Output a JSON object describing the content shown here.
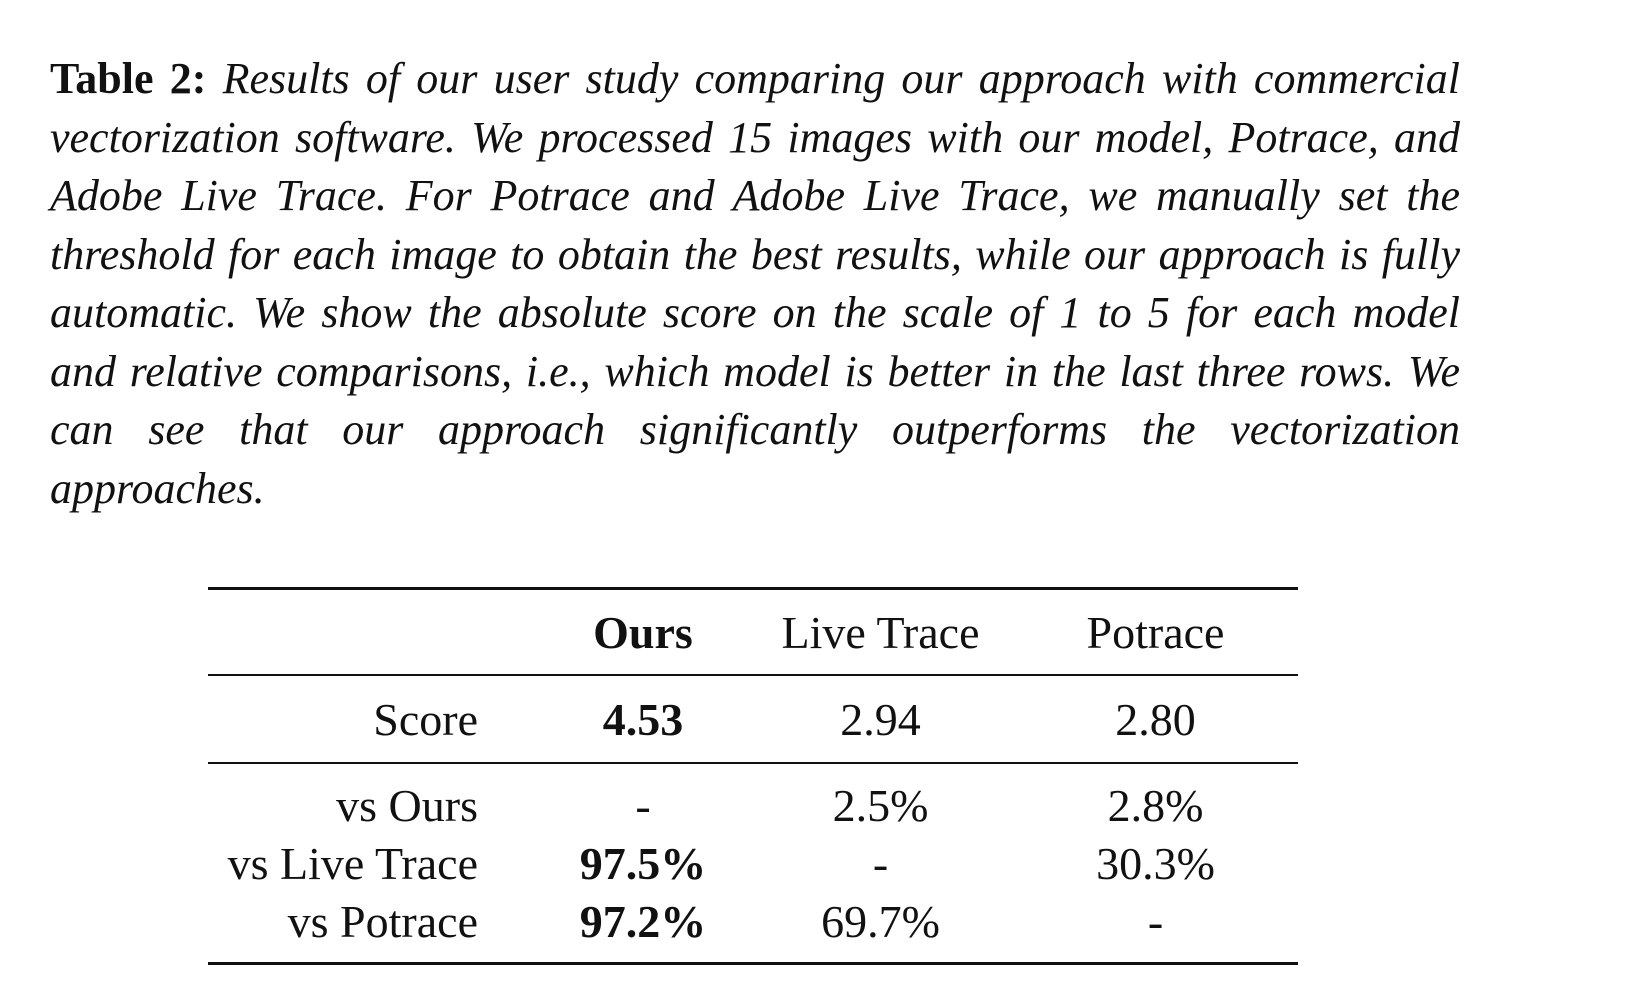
{
  "caption": {
    "label": "Table 2:",
    "text": "Results of our user study comparing our approach with commercial vectorization software. We processed 15 images with our model, Potrace, and Adobe Live Trace. For Potrace and Adobe Live Trace, we manually set the threshold for each image to obtain the best results, while our approach is fully automatic. We show the absolute score on the scale of 1 to 5 for each model and relative comparisons, i.e., which model is better in the last three rows. We can see that our approach significantly outperforms the vectorization approaches."
  },
  "table": {
    "headers": [
      "",
      "Ours",
      "Live Trace",
      "Potrace"
    ],
    "score_row": {
      "label": "Score",
      "values": [
        "4.53",
        "2.94",
        "2.80"
      ]
    },
    "relative_rows": [
      {
        "label": "vs Ours",
        "values": [
          "-",
          "2.5%",
          "2.8%"
        ]
      },
      {
        "label": "vs Live Trace",
        "values": [
          "97.5%",
          "-",
          "30.3%"
        ]
      },
      {
        "label": "vs Potrace",
        "values": [
          "97.2%",
          "69.7%",
          "-"
        ]
      }
    ]
  }
}
